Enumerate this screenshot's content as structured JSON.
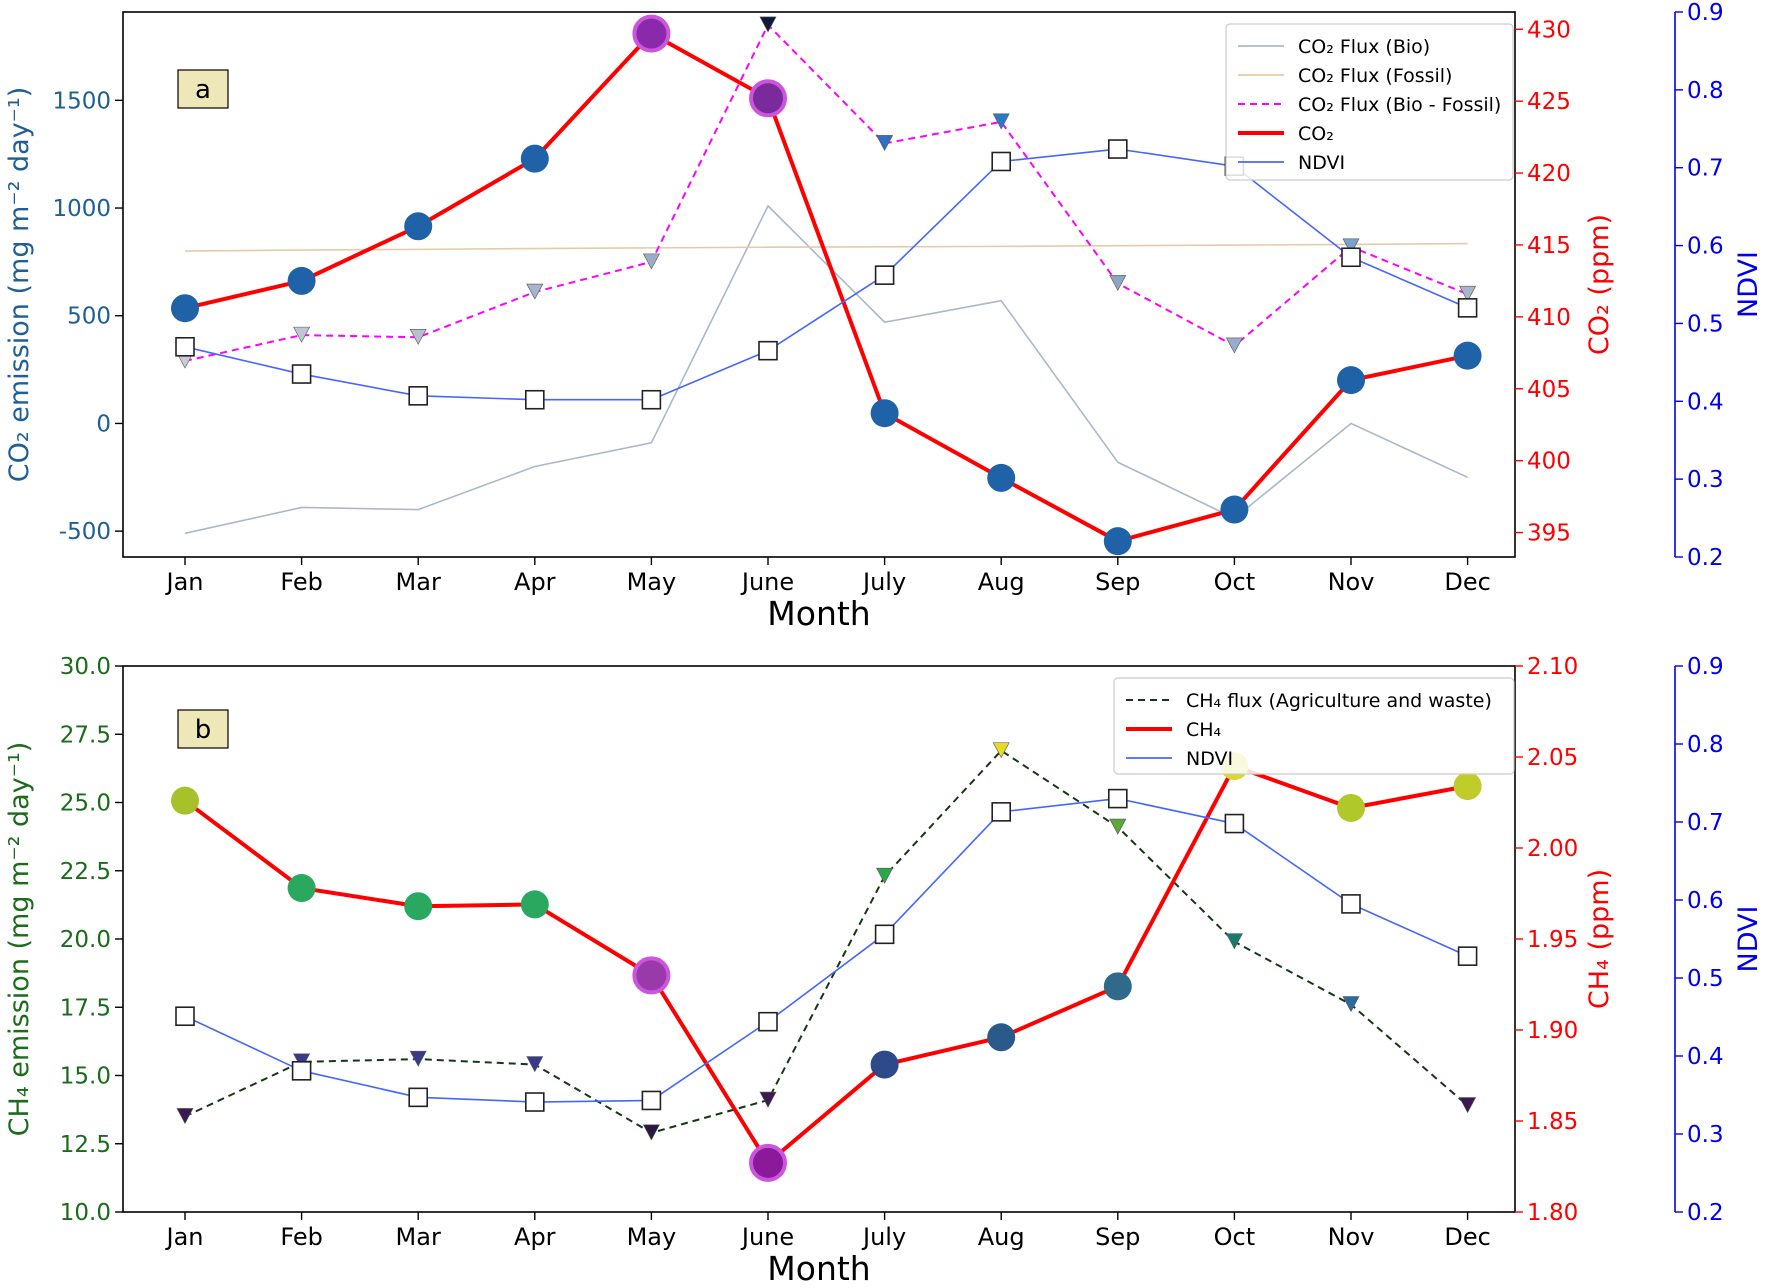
{
  "months": [
    "Jan",
    "Feb",
    "Mar",
    "Apr",
    "May",
    "June",
    "July",
    "Aug",
    "Sep",
    "Oct",
    "Nov",
    "Dec"
  ],
  "chart_data": [
    {
      "type": "line",
      "panel_label": "a",
      "xlabel": "Month",
      "y_left": {
        "label": "CO₂ emission (mg m⁻² day⁻¹)",
        "ylim": [
          -620,
          1910
        ],
        "ticks": [
          -500,
          0,
          500,
          1000,
          1500
        ],
        "color": "#1f5f96"
      },
      "y_right1": {
        "label": "CO₂ (ppm)",
        "ylim": [
          393.3,
          431.2
        ],
        "ticks": [
          395,
          400,
          405,
          410,
          415,
          420,
          425,
          430
        ],
        "color": "#ff0000"
      },
      "y_right2": {
        "label": "NDVI",
        "ylim": [
          0.2,
          0.9
        ],
        "ticks": [
          "0.2",
          "0.3",
          "0.4",
          "0.5",
          "0.6",
          "0.7",
          "0.8",
          "0.9"
        ],
        "color": "#0000ee"
      },
      "series": [
        {
          "name": "CO₂ Flux (Bio)",
          "axis": "left",
          "style": "solid",
          "color": "#a9b9c9",
          "values": [
            -510,
            -390,
            -400,
            -200,
            -90,
            1010,
            470,
            570,
            -180,
            -440,
            0,
            -250
          ]
        },
        {
          "name": "CO₂ Flux (Fossil)",
          "axis": "left",
          "style": "solid",
          "color": "#e8c9a9",
          "values": [
            800,
            805,
            808,
            812,
            815,
            818,
            820,
            822,
            825,
            828,
            831,
            835
          ]
        },
        {
          "name": "CO₂ Flux (Bio - Fossil)",
          "axis": "left",
          "style": "dashed",
          "color": "#ff00ff",
          "values": [
            290,
            410,
            400,
            610,
            750,
            1850,
            1300,
            1400,
            650,
            360,
            820,
            600
          ]
        },
        {
          "name": "CO₂",
          "axis": "right1",
          "style": "thick",
          "color": "#ff0000",
          "values": [
            410.6,
            412.5,
            416.3,
            421.0,
            429.7,
            425.2,
            403.3,
            398.8,
            394.4,
            396.6,
            405.6,
            407.3
          ]
        },
        {
          "name": "NDVI",
          "axis": "right2",
          "style": "solid",
          "color": "#4466ff",
          "values": [
            0.47,
            0.435,
            0.407,
            0.402,
            0.402,
            0.465,
            0.562,
            0.708,
            0.724,
            0.702,
            0.585,
            0.52
          ]
        }
      ]
    },
    {
      "type": "line",
      "panel_label": "b",
      "xlabel": "Month",
      "y_left": {
        "label": "CH₄ emission (mg m⁻² day⁻¹)",
        "ylim": [
          10,
          30
        ],
        "ticks": [
          "10.0",
          "12.5",
          "15.0",
          "17.5",
          "20.0",
          "22.5",
          "25.0",
          "27.5",
          "30.0"
        ],
        "color": "#1a6b1a"
      },
      "y_right1": {
        "label": "CH₄ (ppm)",
        "ylim": [
          1.8,
          2.1
        ],
        "ticks": [
          "1.80",
          "1.85",
          "1.90",
          "1.95",
          "2.00",
          "2.05",
          "2.10"
        ],
        "color": "#ff0000"
      },
      "y_right2": {
        "label": "NDVI",
        "ylim": [
          0.2,
          0.9
        ],
        "ticks": [
          "0.2",
          "0.3",
          "0.4",
          "0.5",
          "0.6",
          "0.7",
          "0.8",
          "0.9"
        ],
        "color": "#0000ee"
      },
      "series": [
        {
          "name": "CH₄ flux (Agriculture and waste)",
          "axis": "left",
          "style": "dashed",
          "color": "#133913",
          "values": [
            13.5,
            15.5,
            15.6,
            15.4,
            12.9,
            14.1,
            22.3,
            26.9,
            24.1,
            19.9,
            17.6,
            13.9
          ]
        },
        {
          "name": "CH₄",
          "axis": "right1",
          "style": "thick",
          "color": "#ff0000",
          "values": [
            2.026,
            1.978,
            1.968,
            1.969,
            1.93,
            1.827,
            1.881,
            1.896,
            1.924,
            2.045,
            2.022,
            2.034
          ]
        },
        {
          "name": "NDVI",
          "axis": "right2",
          "style": "solid",
          "color": "#4466ff",
          "values": [
            0.451,
            0.381,
            0.347,
            0.341,
            0.343,
            0.444,
            0.556,
            0.713,
            0.73,
            0.698,
            0.595,
            0.528
          ]
        }
      ]
    }
  ]
}
